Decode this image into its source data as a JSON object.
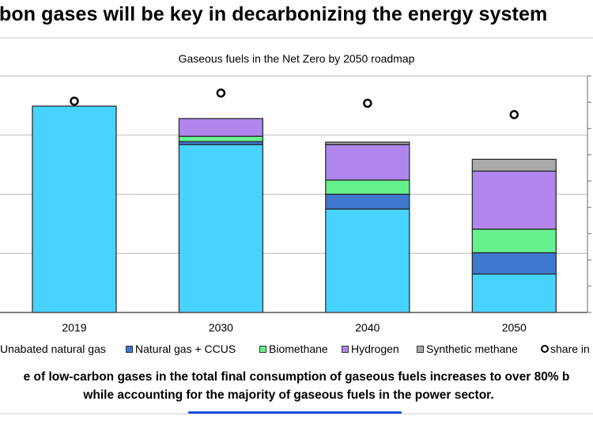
{
  "header": {
    "title": "bon gases will be key in decarbonizing the energy system"
  },
  "chart_data": {
    "type": "bar",
    "stacked": true,
    "title": "Gaseous fuels in the Net Zero by 2050 roadmap",
    "categories": [
      "2019",
      "2030",
      "2040",
      "2050"
    ],
    "ylim": [
      0,
      4
    ],
    "y2lim": [
      0,
      9
    ],
    "grid": true,
    "legend_position": "bottom",
    "series": [
      {
        "name": "Unabated natural gas",
        "color": "#48D2FF",
        "values": [
          3.49,
          2.84,
          1.75,
          0.65
        ]
      },
      {
        "name": "Natural gas + CCUS",
        "color": "#3F78CF",
        "values": [
          0,
          0.05,
          0.25,
          0.36
        ]
      },
      {
        "name": "Biomethane",
        "color": "#66F08E",
        "values": [
          0,
          0.09,
          0.24,
          0.4
        ]
      },
      {
        "name": "Hydrogen",
        "color": "#B086EE",
        "values": [
          0,
          0.3,
          0.6,
          0.98
        ]
      },
      {
        "name": "Synthetic methane",
        "color": "#AAAAAA",
        "values": [
          0,
          0,
          0.04,
          0.2
        ]
      }
    ],
    "markers": {
      "name": "share in",
      "axis": "secondary",
      "values": [
        8.04,
        8.35,
        7.96,
        7.53
      ]
    }
  },
  "caption": {
    "line1": "e of low-carbon gases in the total final consumption of gaseous fuels increases to over 80% b",
    "line2": "while accounting for the majority of gaseous fuels in the power sector."
  }
}
